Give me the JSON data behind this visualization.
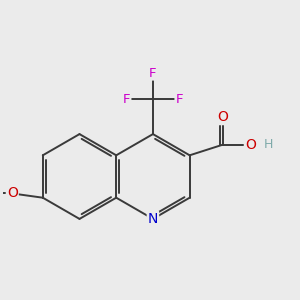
{
  "bg_color": "#ebebeb",
  "bond_color": "#3a3a3a",
  "bond_width": 1.4,
  "atom_colors": {
    "N": "#0000cc",
    "O": "#cc0000",
    "F": "#cc00cc",
    "H": "#7faaaa",
    "C": "#3a3a3a"
  },
  "font_size": 9.5,
  "bl": 0.72
}
